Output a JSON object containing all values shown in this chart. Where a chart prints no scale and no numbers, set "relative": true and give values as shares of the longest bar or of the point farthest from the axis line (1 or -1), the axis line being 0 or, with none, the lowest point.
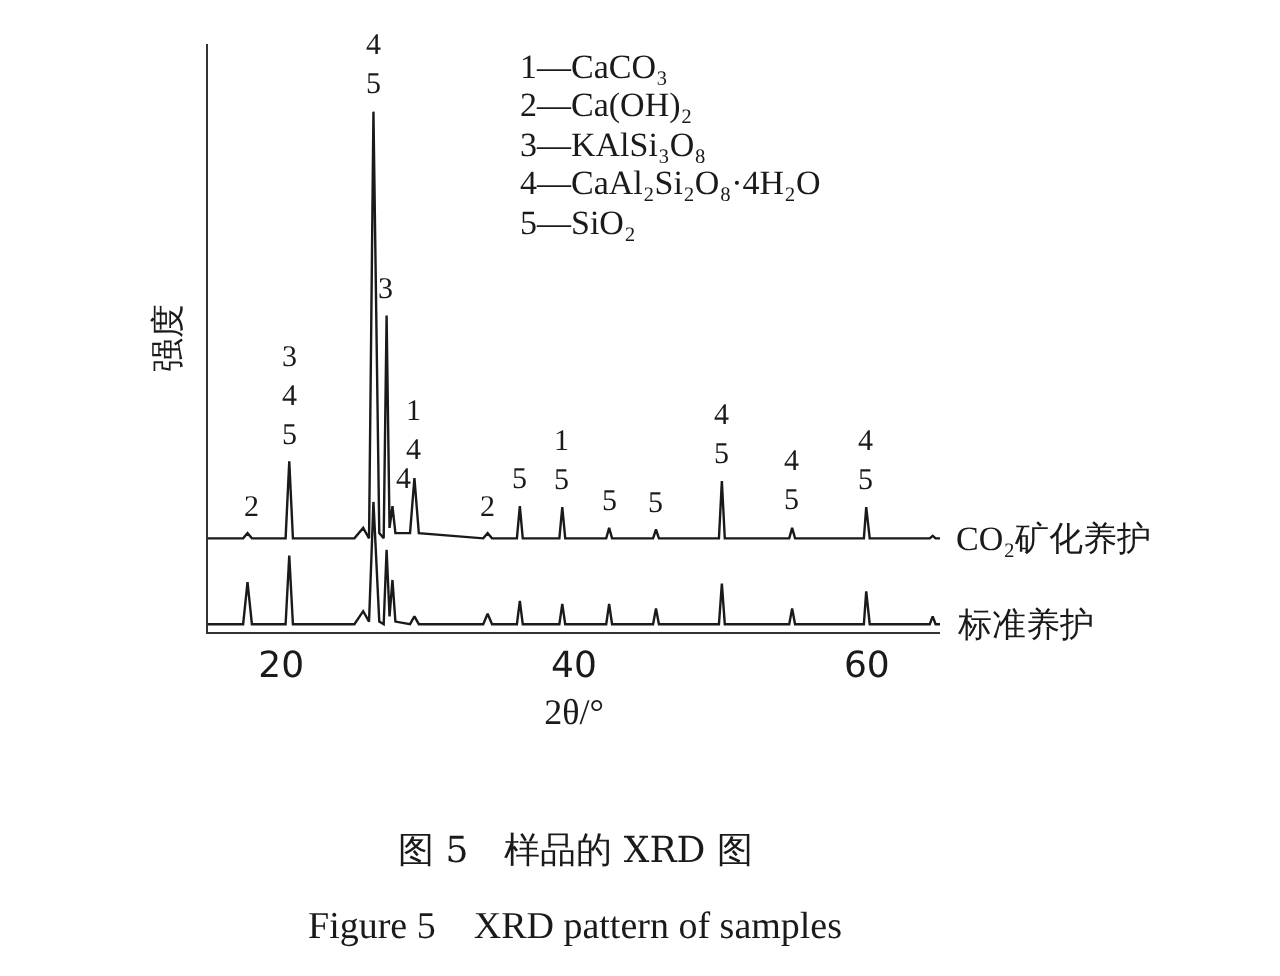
{
  "chart_data": {
    "type": "line",
    "relative": true,
    "title": "图 5　样品的 XRD 图",
    "subtitle": "Figure 5　XRD pattern of samples",
    "xlabel": "2θ/°",
    "ylabel": "强度",
    "x": [
      15,
      17.4,
      17.7,
      18.0,
      20.3,
      20.55,
      20.8,
      25.0,
      25.6,
      26.0,
      26.3,
      26.7,
      27.0,
      27.2,
      27.4,
      27.6,
      27.8,
      28.8,
      29.1,
      29.4,
      33.8,
      34.1,
      34.4,
      36.1,
      36.3,
      36.5,
      39.0,
      39.2,
      39.4,
      42.2,
      42.4,
      42.6,
      45.4,
      45.6,
      45.8,
      49.9,
      50.1,
      50.3,
      54.7,
      54.9,
      55.1,
      59.8,
      59.96,
      60.2,
      64.3,
      64.5,
      64.7,
      65
    ],
    "series": [
      {
        "name": "CO₂矿化养护",
        "color": "#1a1a1a",
        "values": [
          0.18,
          0.18,
          0.19,
          0.18,
          0.18,
          0.328,
          0.18,
          0.18,
          0.2,
          0.18,
          1.0,
          0.19,
          0.18,
          0.608,
          0.2,
          0.242,
          0.19,
          0.19,
          0.296,
          0.19,
          0.18,
          0.19,
          0.18,
          0.18,
          0.242,
          0.18,
          0.18,
          0.24,
          0.18,
          0.18,
          0.2,
          0.18,
          0.18,
          0.197,
          0.18,
          0.18,
          0.29,
          0.18,
          0.18,
          0.2,
          0.18,
          0.18,
          0.24,
          0.18,
          0.18,
          0.185,
          0.18,
          0.18
        ]
      },
      {
        "name": "标准养护",
        "color": "#1a1a1a",
        "values": [
          0.015,
          0.015,
          0.096,
          0.015,
          0.015,
          0.147,
          0.015,
          0.015,
          0.04,
          0.02,
          0.25,
          0.02,
          0.015,
          0.158,
          0.03,
          0.1,
          0.02,
          0.015,
          0.03,
          0.015,
          0.015,
          0.035,
          0.015,
          0.015,
          0.06,
          0.015,
          0.015,
          0.054,
          0.015,
          0.015,
          0.054,
          0.015,
          0.015,
          0.045,
          0.015,
          0.015,
          0.093,
          0.015,
          0.015,
          0.045,
          0.015,
          0.015,
          0.078,
          0.015,
          0.015,
          0.03,
          0.015,
          0.015
        ]
      }
    ],
    "xlim": [
      15,
      65
    ],
    "xticks": [
      20,
      40,
      60
    ],
    "tick_labels": "x",
    "annotations": [
      {
        "text": "2",
        "x": 18.0,
        "y": 0.19
      },
      {
        "text": "3\n4\n5",
        "x": 20.55,
        "y": 0.328
      },
      {
        "text": "4\n5",
        "x": 26.3,
        "y": 1.0
      },
      {
        "text": "3",
        "x": 27.2,
        "y": 0.608
      },
      {
        "text": "4",
        "x": 27.6,
        "y": 0.242
      },
      {
        "text": "1\n4",
        "x": 29.1,
        "y": 0.296
      },
      {
        "text": "2",
        "x": 34.1,
        "y": 0.19
      },
      {
        "text": "5",
        "x": 36.3,
        "y": 0.242
      },
      {
        "text": "1\n5",
        "x": 39.2,
        "y": 0.24
      },
      {
        "text": "5",
        "x": 42.4,
        "y": 0.2
      },
      {
        "text": "5",
        "x": 45.6,
        "y": 0.197
      },
      {
        "text": "4\n5",
        "x": 50.1,
        "y": 0.29
      },
      {
        "text": "4\n5",
        "x": 54.9,
        "y": 0.2
      },
      {
        "text": "4\n5",
        "x": 59.96,
        "y": 0.24
      },
      "1—CaCO₃",
      "2—Ca(OH)₂",
      "3—KAlSi₃O₈",
      "4—CaAl₂Si₂O₈·4H₂O",
      "5—SiO₂"
    ]
  }
}
